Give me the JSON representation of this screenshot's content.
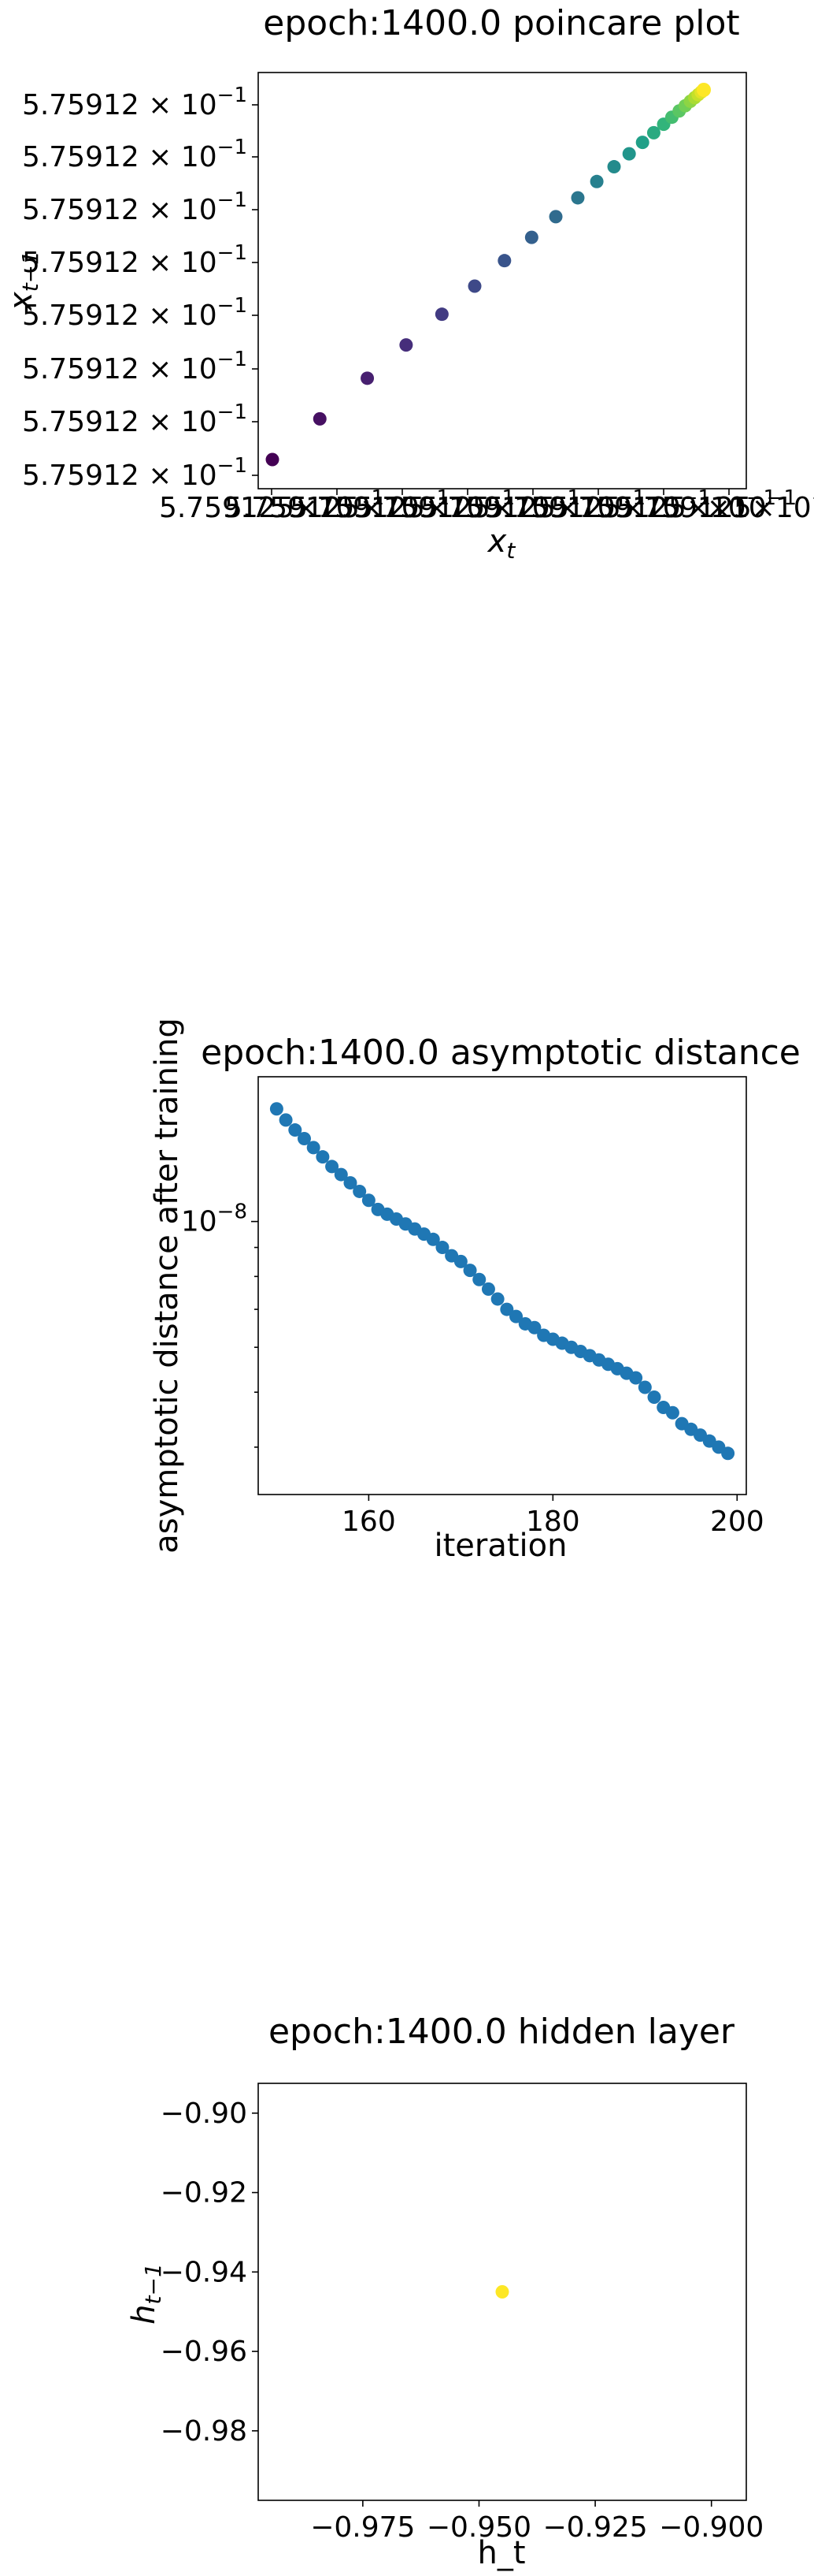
{
  "chart_data": [
    {
      "type": "scatter",
      "title": "epoch:1400.0 poincare plot",
      "xlabel": "x_t",
      "ylabel": "x_{t-1}",
      "y_tick_labels": [
        "5.75912 × 10^-1",
        "5.75912 × 10^-1",
        "5.75912 × 10^-1",
        "5.75912 × 10^-1",
        "5.75912 × 10^-1",
        "5.75912 × 10^-1",
        "5.75912 × 10^-1",
        "5.75912 × 10^-1"
      ],
      "x_tick_labels": [
        "5.759125×10^-1",
        "5.759125×10^-1",
        "5.759125×10^-1",
        "5.759125×10^-1",
        "5.759125×10^-1",
        "5.759125×10^-1",
        "5.759125×10^-1",
        "5.759125×10^-1",
        "×10^-1"
      ],
      "x": [
        0.0,
        0.11,
        0.22,
        0.31,
        0.393,
        0.469,
        0.538,
        0.601,
        0.657,
        0.708,
        0.752,
        0.792,
        0.827,
        0.858,
        0.884,
        0.907,
        0.926,
        0.943,
        0.957,
        0.969,
        0.979,
        0.987,
        0.994,
        1.0
      ],
      "y": [
        0.0,
        0.11,
        0.22,
        0.31,
        0.393,
        0.469,
        0.538,
        0.601,
        0.657,
        0.708,
        0.752,
        0.792,
        0.827,
        0.858,
        0.884,
        0.907,
        0.926,
        0.943,
        0.957,
        0.969,
        0.979,
        0.987,
        0.994,
        1.0
      ],
      "color_scale": "viridis",
      "grid": false
    },
    {
      "type": "scatter",
      "title": "epoch:1400.0 asymptotic distance",
      "xlabel": "iteration",
      "ylabel": "asymptotic distance after training",
      "yscale": "log",
      "x_ticks": [
        160,
        180,
        200
      ],
      "y_tick_labels": [
        "10^-8"
      ],
      "xlim": [
        148,
        201
      ],
      "ylim": [
        3.3e-09,
        1.8e-08
      ],
      "x": [
        150,
        151,
        152,
        153,
        154,
        155,
        156,
        157,
        158,
        159,
        160,
        161,
        162,
        163,
        164,
        165,
        166,
        167,
        168,
        169,
        170,
        171,
        172,
        173,
        174,
        175,
        176,
        177,
        178,
        179,
        180,
        181,
        182,
        183,
        184,
        185,
        186,
        187,
        188,
        189,
        190,
        191,
        192,
        193,
        194,
        195,
        196,
        197,
        198,
        199
      ],
      "y": [
        1.58e-08,
        1.51e-08,
        1.45e-08,
        1.4e-08,
        1.35e-08,
        1.3e-08,
        1.25e-08,
        1.21e-08,
        1.17e-08,
        1.13e-08,
        1.09e-08,
        1.05e-08,
        1.03e-08,
        1.01e-08,
        9.9e-09,
        9.7e-09,
        9.5e-09,
        9.3e-09,
        9e-09,
        8.7e-09,
        8.5e-09,
        8.2e-09,
        7.9e-09,
        7.6e-09,
        7.3e-09,
        7e-09,
        6.8e-09,
        6.6e-09,
        6.5e-09,
        6.3e-09,
        6.2e-09,
        6.1e-09,
        6e-09,
        5.9e-09,
        5.8e-09,
        5.7e-09,
        5.6e-09,
        5.5e-09,
        5.4e-09,
        5.3e-09,
        5.1e-09,
        4.9e-09,
        4.7e-09,
        4.6e-09,
        4.4e-09,
        4.3e-09,
        4.2e-09,
        4.1e-09,
        4e-09,
        3.9e-09
      ],
      "marker_color": "#1f77b4",
      "grid": false
    },
    {
      "type": "scatter",
      "title": "epoch:1400.0 hidden layer",
      "xlabel": "h_t",
      "ylabel": "h_{t-1}",
      "x_ticks": [
        -0.975,
        -0.95,
        -0.925,
        -0.9
      ],
      "x_tick_labels": [
        "−0.975",
        "−0.950",
        "−0.925",
        "−0.900"
      ],
      "y_ticks": [
        -0.9,
        -0.92,
        -0.94,
        -0.96,
        -0.98
      ],
      "y_tick_labels": [
        "−0.90",
        "−0.92",
        "−0.94",
        "−0.96",
        "−0.98"
      ],
      "xlim": [
        -0.9975,
        -0.8925
      ],
      "ylim": [
        -0.9975,
        -0.8925
      ],
      "x": [
        -0.945
      ],
      "y": [
        -0.945
      ],
      "marker_color": "#fde725",
      "grid": false
    }
  ]
}
